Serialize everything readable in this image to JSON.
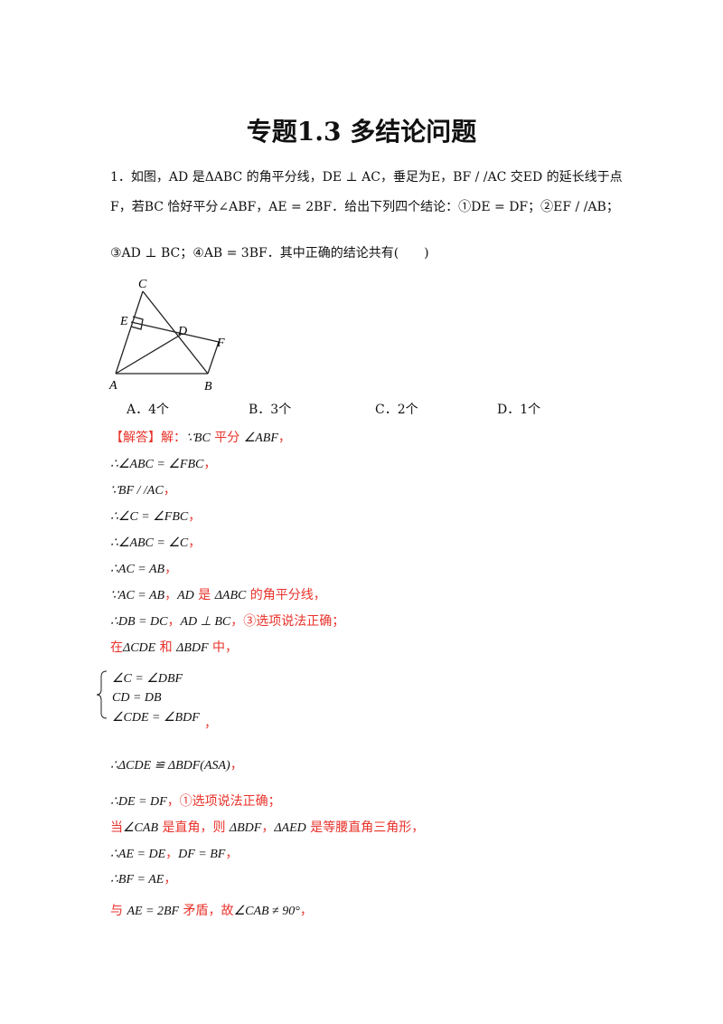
{
  "title": "专题1.3  多结论问题",
  "question": {
    "lines": [
      "1．如图，AD 是ΔABC 的角平分线，DE ⊥ AC，垂足为E，BF / /AC 交ED 的延长线于点",
      "F，若BC 恰好平分∠ABF，AE = 2BF．给出下列四个结论：①DE = DF；②EF / /AB；",
      "③AD ⊥ BC；④AB = 3BF．其中正确的结论共有(　　)"
    ],
    "options": [
      "A．4个",
      "B．3个",
      "C．2个",
      "D．1个"
    ]
  },
  "figure": {
    "labels": [
      "C",
      "E",
      "D",
      "F",
      "A",
      "B"
    ]
  },
  "solution": {
    "lines": [
      [
        {
          "text": "【解答】解：",
          "color": "red"
        },
        {
          "text": "∵BC",
          "color": "black"
        },
        {
          "text": " 平分 ",
          "color": "red"
        },
        {
          "text": "∠ABF",
          "color": "black"
        },
        {
          "text": "，",
          "color": "red"
        }
      ],
      [
        {
          "text": "∴∠ABC = ∠FBC",
          "color": "black"
        },
        {
          "text": "，",
          "color": "red"
        }
      ],
      [
        {
          "text": "∵BF / /AC",
          "color": "black"
        },
        {
          "text": "，",
          "color": "red"
        }
      ],
      [
        {
          "text": "∴∠C = ∠FBC",
          "color": "black"
        },
        {
          "text": "，",
          "color": "red"
        }
      ],
      [
        {
          "text": "∴∠ABC = ∠C",
          "color": "black"
        },
        {
          "text": "，",
          "color": "red"
        }
      ],
      [
        {
          "text": "∴AC = AB",
          "color": "black"
        },
        {
          "text": "，",
          "color": "red"
        }
      ],
      [
        {
          "text": "∵AC = AB",
          "color": "black"
        },
        {
          "text": "，",
          "color": "red"
        },
        {
          "text": "AD",
          "color": "black"
        },
        {
          "text": " 是 ",
          "color": "red"
        },
        {
          "text": "ΔABC",
          "color": "black"
        },
        {
          "text": " 的角平分线，",
          "color": "red"
        }
      ],
      [
        {
          "text": "∴DB = DC",
          "color": "black"
        },
        {
          "text": "，",
          "color": "red"
        },
        {
          "text": "AD ⊥ BC",
          "color": "black"
        },
        {
          "text": "，③选项说法正确；",
          "color": "red"
        }
      ],
      [
        {
          "text": "在",
          "color": "red"
        },
        {
          "text": "ΔCDE",
          "color": "black"
        },
        {
          "text": " 和 ",
          "color": "red"
        },
        {
          "text": "ΔBDF",
          "color": "black"
        },
        {
          "text": " 中，",
          "color": "red"
        }
      ],
      [
        {
          "text": "∴ΔCDE ≌ ΔBDF(ASA)",
          "color": "black"
        },
        {
          "text": "，",
          "color": "red"
        }
      ],
      [
        {
          "text": "∴DE = DF",
          "color": "black"
        },
        {
          "text": "，①选项说法正确；",
          "color": "red"
        }
      ],
      [
        {
          "text": "当",
          "color": "red"
        },
        {
          "text": "∠CAB",
          "color": "black"
        },
        {
          "text": " 是直角，则 ",
          "color": "red"
        },
        {
          "text": "ΔBDF",
          "color": "black"
        },
        {
          "text": "，",
          "color": "red"
        },
        {
          "text": "ΔAED",
          "color": "black"
        },
        {
          "text": " 是等腰直角三角形，",
          "color": "red"
        }
      ],
      [
        {
          "text": "∴AE = DE",
          "color": "black"
        },
        {
          "text": "，",
          "color": "red"
        },
        {
          "text": "DF = BF",
          "color": "black"
        },
        {
          "text": "，",
          "color": "red"
        }
      ],
      [
        {
          "text": "∴BF = AE",
          "color": "black"
        },
        {
          "text": "，",
          "color": "red"
        }
      ],
      [
        {
          "text": "与 ",
          "color": "red"
        },
        {
          "text": "AE = 2BF",
          "color": "black"
        },
        {
          "text": " 矛盾，故",
          "color": "red"
        },
        {
          "text": "∠CAB ≠ 90°",
          "color": "black"
        },
        {
          "text": "，",
          "color": "red"
        }
      ]
    ],
    "system": {
      "lines": [
        "∠C = ∠DBF",
        "CD = DB",
        "∠CDE = ∠BDF"
      ],
      "tail": "，"
    }
  }
}
